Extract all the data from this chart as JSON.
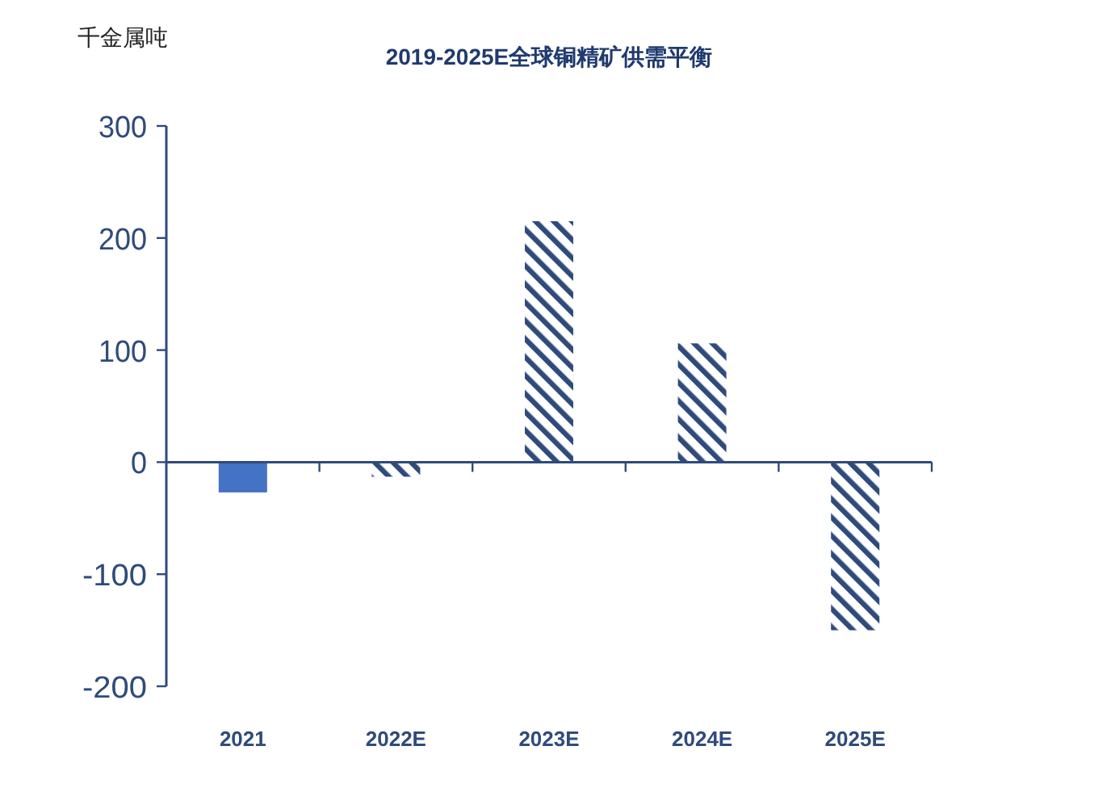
{
  "chart_data": {
    "type": "bar",
    "title": "2019-2025E全球铜精矿供需平衡",
    "ylabel": "千金属吨",
    "categories": [
      "2021",
      "2022E",
      "2023E",
      "2024E",
      "2025E"
    ],
    "values": [
      -27,
      -13,
      215,
      106,
      -150
    ],
    "colors": [
      "#4472c4",
      "#2f4b7c",
      "#2f4b7c",
      "#2f4b7c",
      "#2f4b7c"
    ],
    "ylim": [
      -200,
      300
    ],
    "yticks": [
      -200,
      -100,
      0,
      100,
      200,
      300
    ],
    "grid": false,
    "ref_lines": [
      {
        "axis": "y",
        "value": 0,
        "color": "#2f4b7c"
      }
    ]
  }
}
